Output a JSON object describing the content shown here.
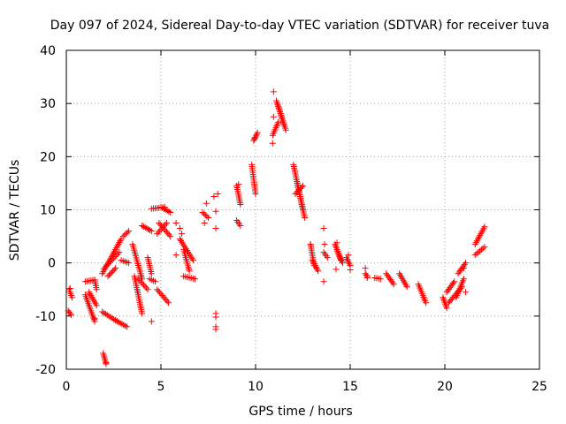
{
  "chart_data": {
    "type": "scatter",
    "title": "Day 097 of 2024, Sidereal Day-to-day VTEC variation (SDTVAR) for receiver tuva",
    "xlabel": "GPS time / hours",
    "ylabel": "SDTVAR / TECUs",
    "xlim": [
      0,
      25
    ],
    "ylim": [
      -20,
      40
    ],
    "xticks": [
      0,
      5,
      10,
      15,
      20,
      25
    ],
    "yticks": [
      -20,
      -10,
      0,
      10,
      20,
      30,
      40
    ],
    "xtick_labels": [
      "0",
      "5",
      "10",
      "15",
      "20",
      "25"
    ],
    "ytick_labels": [
      "-20",
      "-10",
      "0",
      "10",
      "20",
      "30",
      "40"
    ],
    "grid": true,
    "marker": "+",
    "color": "#ff0000",
    "segments": [
      {
        "x0": 0.15,
        "y0": -5.0,
        "x1": 0.3,
        "y1": -6.5
      },
      {
        "x0": 0.1,
        "y0": -9.0,
        "x1": 0.25,
        "y1": -9.8
      },
      {
        "x0": 1.0,
        "y0": -3.5,
        "x1": 1.5,
        "y1": -3.2
      },
      {
        "x0": 1.5,
        "y0": -3.2,
        "x1": 1.6,
        "y1": -5.0
      },
      {
        "x0": 1.0,
        "y0": -6.0,
        "x1": 1.5,
        "y1": -11.0
      },
      {
        "x0": 1.2,
        "y0": -5.5,
        "x1": 1.6,
        "y1": -8.0
      },
      {
        "x0": 1.9,
        "y0": -9.2,
        "x1": 2.6,
        "y1": -10.8
      },
      {
        "x0": 2.6,
        "y0": -10.8,
        "x1": 3.2,
        "y1": -12.0
      },
      {
        "x0": 1.95,
        "y0": -17.0,
        "x1": 2.1,
        "y1": -19.0
      },
      {
        "x0": 1.9,
        "y0": -2.0,
        "x1": 2.9,
        "y1": 4.5
      },
      {
        "x0": 2.0,
        "y0": -1.0,
        "x1": 2.8,
        "y1": 2.0
      },
      {
        "x0": 2.2,
        "y0": -2.5,
        "x1": 2.6,
        "y1": -1.0
      },
      {
        "x0": 3.0,
        "y0": 5.0,
        "x1": 3.3,
        "y1": 6.0
      },
      {
        "x0": 2.9,
        "y0": 0.5,
        "x1": 3.3,
        "y1": 0.0
      },
      {
        "x0": 3.5,
        "y0": 3.5,
        "x1": 4.0,
        "y1": -3.0
      },
      {
        "x0": 3.6,
        "y0": -2.5,
        "x1": 4.0,
        "y1": -9.5
      },
      {
        "x0": 3.8,
        "y0": -3.0,
        "x1": 4.3,
        "y1": -5.0
      },
      {
        "x0": 4.0,
        "y0": 7.0,
        "x1": 4.5,
        "y1": 6.0
      },
      {
        "x0": 4.3,
        "y0": 1.0,
        "x1": 4.5,
        "y1": -2.0
      },
      {
        "x0": 4.4,
        "y0": -3.0,
        "x1": 4.7,
        "y1": -3.5
      },
      {
        "x0": 4.8,
        "y0": -5.0,
        "x1": 5.4,
        "y1": -7.5
      },
      {
        "x0": 4.5,
        "y0": 10.2,
        "x1": 5.2,
        "y1": 10.5
      },
      {
        "x0": 5.0,
        "y0": 10.5,
        "x1": 5.5,
        "y1": 9.5
      },
      {
        "x0": 4.9,
        "y0": 7.5,
        "x1": 5.5,
        "y1": 5.0
      },
      {
        "x0": 4.8,
        "y0": 5.5,
        "x1": 5.3,
        "y1": 7.5
      },
      {
        "x0": 6.0,
        "y0": 4.5,
        "x1": 6.7,
        "y1": 0.5
      },
      {
        "x0": 6.2,
        "y0": 2.5,
        "x1": 6.5,
        "y1": -1.5
      },
      {
        "x0": 6.2,
        "y0": -2.5,
        "x1": 6.8,
        "y1": -3.0
      },
      {
        "x0": 7.2,
        "y0": 9.5,
        "x1": 7.5,
        "y1": 8.5
      },
      {
        "x0": 9.0,
        "y0": 14.5,
        "x1": 9.2,
        "y1": 11.0
      },
      {
        "x0": 9.0,
        "y0": 8.0,
        "x1": 9.2,
        "y1": 7.0
      },
      {
        "x0": 9.8,
        "y0": 18.5,
        "x1": 10.0,
        "y1": 13.0
      },
      {
        "x0": 9.9,
        "y0": 23.0,
        "x1": 10.1,
        "y1": 24.5
      },
      {
        "x0": 10.9,
        "y0": 24.0,
        "x1": 11.2,
        "y1": 26.5
      },
      {
        "x0": 11.1,
        "y0": 30.5,
        "x1": 11.6,
        "y1": 25.0
      },
      {
        "x0": 11.2,
        "y0": 29.5,
        "x1": 11.5,
        "y1": 26.0
      },
      {
        "x0": 12.0,
        "y0": 18.5,
        "x1": 12.5,
        "y1": 10.0
      },
      {
        "x0": 12.2,
        "y0": 15.0,
        "x1": 12.6,
        "y1": 8.5
      },
      {
        "x0": 12.1,
        "y0": 13.0,
        "x1": 12.5,
        "y1": 14.5
      },
      {
        "x0": 12.9,
        "y0": 3.5,
        "x1": 13.1,
        "y1": -0.5
      },
      {
        "x0": 13.0,
        "y0": 0.5,
        "x1": 13.3,
        "y1": -1.5
      },
      {
        "x0": 13.6,
        "y0": 2.0,
        "x1": 13.8,
        "y1": 1.0
      },
      {
        "x0": 14.2,
        "y0": 3.5,
        "x1": 14.5,
        "y1": 0.5
      },
      {
        "x0": 14.3,
        "y0": 2.5,
        "x1": 14.6,
        "y1": 0.0
      },
      {
        "x0": 14.8,
        "y0": 1.0,
        "x1": 15.0,
        "y1": -0.5
      },
      {
        "x0": 15.8,
        "y0": -2.0,
        "x1": 15.9,
        "y1": -2.5
      },
      {
        "x0": 16.3,
        "y0": -2.8,
        "x1": 16.6,
        "y1": -3.0
      },
      {
        "x0": 16.9,
        "y0": -2.0,
        "x1": 17.3,
        "y1": -4.0
      },
      {
        "x0": 17.6,
        "y0": -2.0,
        "x1": 18.0,
        "y1": -4.5
      },
      {
        "x0": 18.6,
        "y0": -4.0,
        "x1": 19.0,
        "y1": -7.5
      },
      {
        "x0": 19.9,
        "y0": -6.5,
        "x1": 20.1,
        "y1": -8.5
      },
      {
        "x0": 20.1,
        "y0": -5.5,
        "x1": 20.5,
        "y1": -3.5
      },
      {
        "x0": 20.2,
        "y0": -7.5,
        "x1": 20.9,
        "y1": -4.5
      },
      {
        "x0": 20.6,
        "y0": -6.5,
        "x1": 21.0,
        "y1": -3.0
      },
      {
        "x0": 20.7,
        "y0": -2.0,
        "x1": 21.1,
        "y1": 0.0
      },
      {
        "x0": 21.6,
        "y0": 3.5,
        "x1": 22.1,
        "y1": 6.8
      },
      {
        "x0": 21.6,
        "y0": 1.5,
        "x1": 22.1,
        "y1": 3.0
      }
    ],
    "points": [
      {
        "x": 0.2,
        "y": -4.8
      },
      {
        "x": 1.5,
        "y": -10.5
      },
      {
        "x": 2.1,
        "y": -18.8
      },
      {
        "x": 4.5,
        "y": -11.0
      },
      {
        "x": 5.8,
        "y": 7.5
      },
      {
        "x": 6.0,
        "y": 6.5
      },
      {
        "x": 6.1,
        "y": 5.5
      },
      {
        "x": 5.8,
        "y": 1.5
      },
      {
        "x": 7.3,
        "y": 7.5
      },
      {
        "x": 7.4,
        "y": 11.2
      },
      {
        "x": 7.8,
        "y": 12.5
      },
      {
        "x": 8.0,
        "y": 13.0
      },
      {
        "x": 7.9,
        "y": 9.7
      },
      {
        "x": 7.9,
        "y": 6.5
      },
      {
        "x": 7.9,
        "y": -9.5
      },
      {
        "x": 7.9,
        "y": -10.2
      },
      {
        "x": 7.9,
        "y": -12.0
      },
      {
        "x": 7.9,
        "y": -12.5
      },
      {
        "x": 9.1,
        "y": 14.8
      },
      {
        "x": 9.95,
        "y": 23.5
      },
      {
        "x": 10.95,
        "y": 32.2
      },
      {
        "x": 10.9,
        "y": 22.5
      },
      {
        "x": 10.95,
        "y": 27.5
      },
      {
        "x": 12.9,
        "y": 3.5
      },
      {
        "x": 13.6,
        "y": 6.5
      },
      {
        "x": 13.65,
        "y": 3.5
      },
      {
        "x": 13.6,
        "y": -3.5
      },
      {
        "x": 14.3,
        "y": 3.8
      },
      {
        "x": 14.25,
        "y": -1.2
      },
      {
        "x": 14.9,
        "y": 1.5
      },
      {
        "x": 15.0,
        "y": -1.3
      },
      {
        "x": 15.8,
        "y": -1.0
      },
      {
        "x": 15.9,
        "y": -2.8
      },
      {
        "x": 21.0,
        "y": -1.0
      },
      {
        "x": 21.1,
        "y": -5.5
      }
    ]
  }
}
